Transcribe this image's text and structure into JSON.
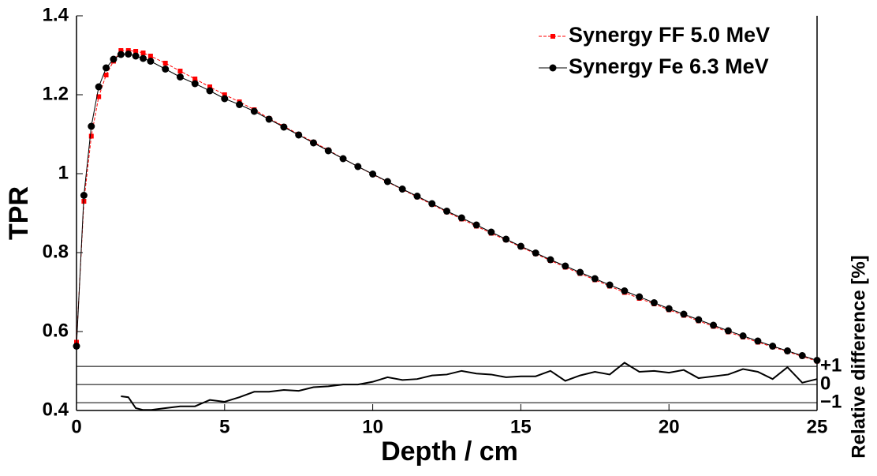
{
  "chart_data": {
    "type": "line",
    "xlabel": "Depth / cm",
    "ylabel": "TPR",
    "y2label": "Relative difference [%]",
    "x": [
      0,
      0.25,
      0.5,
      0.75,
      1,
      1.25,
      1.5,
      1.75,
      2,
      2.25,
      2.5,
      3,
      3.5,
      4,
      4.5,
      5,
      5.5,
      6,
      6.5,
      7,
      7.5,
      8,
      8.5,
      9,
      9.5,
      10,
      10.5,
      11,
      11.5,
      12,
      12.5,
      13,
      13.5,
      14,
      14.5,
      15,
      15.5,
      16,
      16.5,
      17,
      17.5,
      18,
      18.5,
      19,
      19.5,
      20,
      20.5,
      21,
      21.5,
      22,
      22.5,
      23,
      23.5,
      24,
      24.5,
      25
    ],
    "series": [
      {
        "name": "Synergy FF 5.0 MeV",
        "color": "#ff0000",
        "marker": "square",
        "values": [
          0.573,
          0.93,
          1.095,
          1.195,
          1.25,
          1.285,
          1.312,
          1.312,
          1.31,
          1.306,
          1.298,
          1.28,
          1.26,
          1.24,
          1.22,
          1.2,
          1.182,
          1.162,
          1.14,
          1.12,
          1.1,
          1.08,
          1.06,
          1.038,
          1.018,
          0.998,
          0.979,
          0.96,
          0.941,
          0.922,
          0.903,
          0.885,
          0.867,
          0.849,
          0.832,
          0.814,
          0.797,
          0.78,
          0.763,
          0.747,
          0.731,
          0.715,
          0.699,
          0.684,
          0.67,
          0.655,
          0.641,
          0.627,
          0.613,
          0.599,
          0.586,
          0.573,
          0.561,
          0.549,
          0.537,
          0.525
        ]
      },
      {
        "name": "Synergy Fe 6.3 MeV",
        "color": "#000000",
        "marker": "circle",
        "values": [
          0.563,
          0.945,
          1.12,
          1.22,
          1.268,
          1.29,
          1.302,
          1.303,
          1.298,
          1.292,
          1.285,
          1.265,
          1.245,
          1.228,
          1.21,
          1.19,
          1.175,
          1.158,
          1.138,
          1.118,
          1.098,
          1.078,
          1.058,
          1.038,
          1.018,
          0.999,
          0.98,
          0.961,
          0.943,
          0.924,
          0.905,
          0.888,
          0.87,
          0.852,
          0.834,
          0.816,
          0.799,
          0.782,
          0.766,
          0.75,
          0.734,
          0.718,
          0.703,
          0.688,
          0.673,
          0.658,
          0.644,
          0.63,
          0.616,
          0.602,
          0.589,
          0.576,
          0.563,
          0.551,
          0.539,
          0.527
        ]
      },
      {
        "color": "#000000",
        "axis": "y2",
        "values": [
          null,
          null,
          null,
          null,
          null,
          null,
          -0.65,
          -0.7,
          -1.3,
          -1.4,
          -1.4,
          -1.3,
          -1.2,
          -1.2,
          -0.85,
          -0.95,
          -0.7,
          -0.4,
          -0.4,
          -0.3,
          -0.35,
          -0.15,
          -0.1,
          0,
          0,
          0.15,
          0.4,
          0.25,
          0.3,
          0.5,
          0.55,
          0.75,
          0.6,
          0.55,
          0.4,
          0.45,
          0.45,
          0.75,
          0.2,
          0.5,
          0.7,
          0.55,
          1.2,
          0.7,
          0.75,
          0.65,
          0.8,
          0.35,
          0.45,
          0.55,
          0.85,
          0.7,
          0.3,
          0.95,
          0.1,
          0.3
        ]
      }
    ],
    "xlim": [
      0,
      25
    ],
    "xticks": [
      0,
      5,
      10,
      15,
      20,
      25
    ],
    "ylim": [
      0.4,
      1.4
    ],
    "yticks": [
      0.4,
      0.6,
      0.8,
      1,
      1.2,
      1.4
    ],
    "y2lim": [
      -1.43,
      20.3
    ],
    "y2ticks": [
      {
        "value": 1,
        "label": "+1"
      },
      0,
      {
        "value": -1,
        "label": "−1"
      }
    ],
    "y2grid": true,
    "legend": "upper right"
  }
}
